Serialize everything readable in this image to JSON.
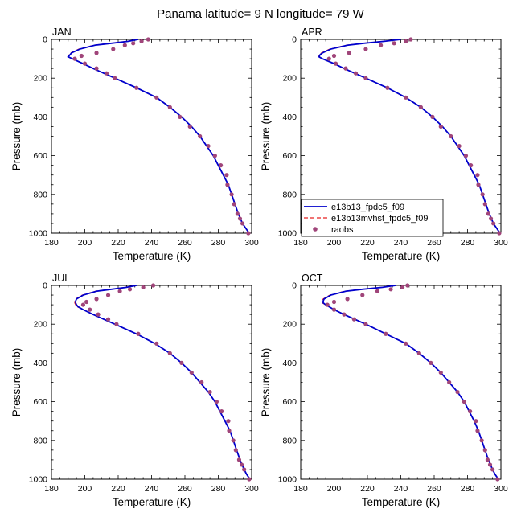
{
  "chart_data": {
    "title": "Panama  latitude= 9 N longitude= 79 W",
    "type": "line",
    "xlabel": "Temperature (K)",
    "ylabel": "Pressure (mb)",
    "xlim": [
      180,
      300
    ],
    "ylim": [
      1000,
      0
    ],
    "xticks": [
      180,
      200,
      220,
      240,
      260,
      280,
      300
    ],
    "yticks": [
      0,
      200,
      400,
      600,
      800,
      1000
    ],
    "legend": {
      "location": "lower-left of APR panel",
      "entries": [
        {
          "name": "e13b13_fpdc5_f09",
          "style": "solid line",
          "color": "#0000CC"
        },
        {
          "name": "e13b13mvhst_fpdc5_f09",
          "style": "dashed line",
          "color": "#E82020"
        },
        {
          "name": "raobs",
          "style": "markers",
          "color": "#A0457A"
        }
      ]
    },
    "panels": [
      {
        "label": "JAN",
        "model_solid": {
          "pressure": [
            0,
            10,
            20,
            30,
            50,
            70,
            80,
            90,
            100,
            125,
            150,
            200,
            250,
            300,
            350,
            400,
            450,
            500,
            550,
            600,
            650,
            700,
            750,
            800,
            850,
            900,
            950,
            975,
            1000
          ],
          "temperature": [
            232,
            226,
            216,
            206,
            197,
            192,
            191,
            190,
            192.5,
            199,
            205,
            218,
            231,
            243,
            251,
            258,
            264,
            269,
            273,
            277,
            280,
            283,
            286,
            288,
            290,
            292,
            294.5,
            296.5,
            298.5
          ]
        },
        "model_dashed": {
          "pressure": [
            0,
            10,
            20,
            30,
            50,
            70,
            80,
            90,
            100,
            125,
            150,
            200,
            250,
            300,
            350,
            400,
            450,
            500,
            550,
            600,
            650,
            700,
            750,
            800,
            850,
            900,
            950,
            975,
            1000
          ],
          "temperature": [
            231.5,
            225.5,
            215.5,
            205.5,
            196.5,
            191.5,
            190.5,
            190,
            192.5,
            199,
            205,
            218,
            231,
            243,
            251,
            258,
            264,
            269,
            273,
            277,
            280,
            283,
            286,
            288,
            290,
            292,
            294.5,
            296.5,
            298.5
          ]
        },
        "raobs": {
          "pressure": [
            0,
            10,
            20,
            30,
            50,
            70,
            85,
            100,
            125,
            150,
            175,
            200,
            250,
            300,
            350,
            400,
            450,
            500,
            550,
            600,
            650,
            700,
            750,
            800,
            850,
            900,
            925,
            950,
            1000
          ],
          "temperature": [
            238,
            234,
            229,
            224,
            217,
            207,
            198,
            194,
            200,
            207,
            213,
            218,
            231,
            243,
            251,
            257,
            263,
            269,
            274,
            278,
            281.5,
            285,
            285.5,
            288,
            289.5,
            291.5,
            293,
            294.5,
            298
          ]
        }
      },
      {
        "label": "APR",
        "model_solid": {
          "pressure": [
            0,
            10,
            20,
            30,
            50,
            70,
            80,
            90,
            100,
            125,
            150,
            200,
            250,
            300,
            350,
            400,
            450,
            500,
            550,
            600,
            650,
            700,
            750,
            800,
            850,
            900,
            950,
            975,
            1000
          ],
          "temperature": [
            240,
            230,
            218,
            208,
            198,
            193,
            191.5,
            191,
            193,
            200,
            206,
            219,
            232,
            243,
            252,
            259,
            265,
            270,
            274,
            278,
            281,
            284,
            287,
            289,
            291,
            293,
            295.5,
            297.5,
            299.5
          ]
        },
        "model_dashed": {
          "pressure": [
            0,
            10,
            20,
            30,
            50,
            70,
            80,
            90,
            100,
            125,
            150,
            200,
            250,
            300,
            350,
            400,
            450,
            500,
            550,
            600,
            650,
            700,
            750,
            800,
            850,
            900,
            950,
            975,
            1000
          ],
          "temperature": [
            239.5,
            229.5,
            217.5,
            207.5,
            197.5,
            192.5,
            191,
            191,
            193,
            200,
            206,
            219,
            232,
            243,
            252,
            259,
            265,
            270,
            274,
            278,
            281,
            284,
            287,
            289,
            291,
            293,
            295.5,
            297.5,
            299.5
          ]
        },
        "raobs": {
          "pressure": [
            0,
            10,
            20,
            30,
            50,
            70,
            85,
            100,
            125,
            150,
            175,
            200,
            250,
            300,
            350,
            400,
            450,
            500,
            550,
            600,
            650,
            700,
            750,
            800,
            850,
            900,
            925,
            950,
            1000
          ],
          "temperature": [
            246,
            243,
            236,
            228,
            219,
            209,
            200,
            197,
            201,
            207,
            213,
            219,
            232,
            243,
            252,
            259,
            264,
            270,
            275,
            279,
            282,
            286,
            286.5,
            289,
            290.5,
            292.5,
            294,
            295.5,
            299
          ]
        }
      },
      {
        "label": "JUL",
        "model_solid": {
          "pressure": [
            0,
            10,
            20,
            30,
            50,
            70,
            80,
            90,
            100,
            110,
            125,
            150,
            200,
            250,
            300,
            350,
            400,
            450,
            500,
            550,
            600,
            650,
            700,
            750,
            800,
            850,
            900,
            950,
            975,
            1000
          ],
          "temperature": [
            231,
            225,
            216,
            207,
            199,
            195,
            194.5,
            194.5,
            195,
            196,
            199,
            205,
            218,
            231,
            242,
            251,
            258,
            264,
            269,
            274,
            278,
            281,
            284,
            287,
            289,
            291,
            293,
            295.5,
            297,
            299
          ]
        },
        "model_dashed": {
          "pressure": [
            0,
            10,
            20,
            30,
            50,
            70,
            80,
            90,
            100,
            110,
            125,
            150,
            200,
            250,
            300,
            350,
            400,
            450,
            500,
            550,
            600,
            650,
            700,
            750,
            800,
            850,
            900,
            950,
            975,
            1000
          ],
          "temperature": [
            230.5,
            224.5,
            215.5,
            206.5,
            198.5,
            194.5,
            194,
            194,
            194.5,
            195.5,
            199,
            205,
            218,
            231,
            242,
            251,
            258,
            264,
            269,
            274,
            278,
            281,
            284,
            287,
            289,
            291,
            293,
            295.5,
            297,
            299
          ]
        },
        "raobs": {
          "pressure": [
            0,
            10,
            20,
            30,
            50,
            70,
            85,
            100,
            125,
            150,
            175,
            200,
            250,
            300,
            350,
            400,
            450,
            500,
            550,
            600,
            650,
            700,
            750,
            800,
            850,
            900,
            925,
            950,
            1000
          ],
          "temperature": [
            241,
            235,
            227,
            221,
            214,
            207,
            201,
            199,
            203,
            208,
            214,
            219,
            232,
            243,
            251,
            258,
            264,
            270,
            275,
            279,
            282,
            286,
            286.5,
            289,
            290.5,
            292.5,
            294,
            295.5,
            298.5
          ]
        }
      },
      {
        "label": "OCT",
        "model_solid": {
          "pressure": [
            0,
            10,
            20,
            30,
            50,
            70,
            80,
            90,
            100,
            125,
            150,
            200,
            250,
            300,
            350,
            400,
            450,
            500,
            550,
            600,
            650,
            700,
            750,
            800,
            850,
            900,
            950,
            975,
            1000
          ],
          "temperature": [
            237,
            229,
            217,
            207,
            198,
            194,
            193.5,
            193.5,
            195,
            200,
            206,
            219,
            231,
            243,
            251,
            258,
            264,
            269,
            274,
            278,
            281,
            284,
            286.5,
            288.5,
            290.5,
            292.5,
            295,
            296.5,
            298.5
          ]
        },
        "model_dashed": {
          "pressure": [
            0,
            10,
            20,
            30,
            50,
            70,
            80,
            90,
            100,
            125,
            150,
            200,
            250,
            300,
            350,
            400,
            450,
            500,
            550,
            600,
            650,
            700,
            750,
            800,
            850,
            900,
            950,
            975,
            1000
          ],
          "temperature": [
            236.5,
            228.5,
            216.5,
            206.5,
            197.5,
            193.5,
            193,
            193,
            195,
            200,
            206,
            219,
            231,
            243,
            251,
            258,
            264,
            269,
            274,
            278,
            281,
            284,
            286.5,
            288.5,
            290.5,
            292.5,
            295,
            296.5,
            298.5
          ]
        },
        "raobs": {
          "pressure": [
            0,
            10,
            20,
            30,
            50,
            70,
            85,
            100,
            125,
            150,
            175,
            200,
            250,
            300,
            350,
            400,
            450,
            500,
            550,
            600,
            650,
            700,
            750,
            800,
            850,
            900,
            925,
            950,
            1000
          ],
          "temperature": [
            244,
            241,
            234,
            226,
            217,
            208,
            200,
            196,
            200,
            206,
            212,
            219,
            231,
            243,
            251,
            258,
            264,
            269,
            274,
            278,
            281.5,
            285,
            286,
            288.5,
            290.5,
            292,
            293.5,
            295,
            298
          ]
        }
      }
    ]
  }
}
